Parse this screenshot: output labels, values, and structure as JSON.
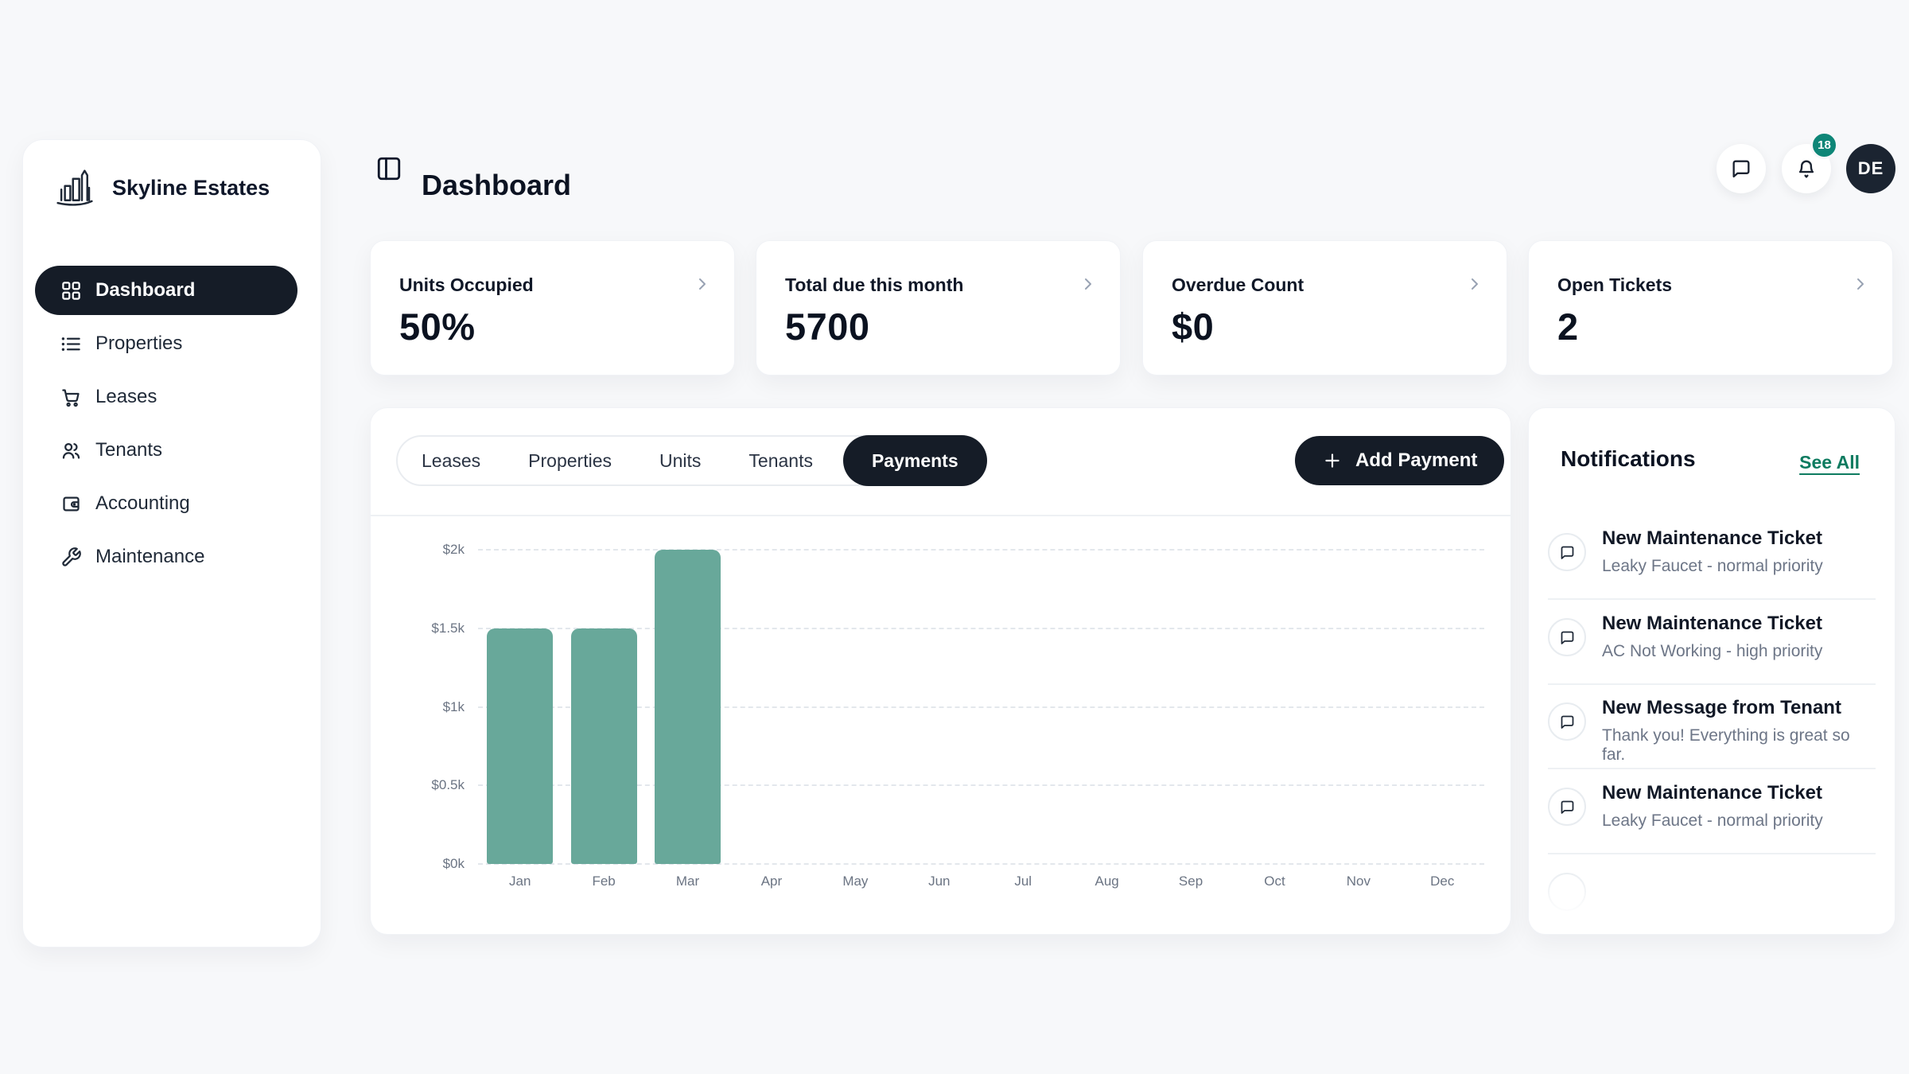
{
  "app": {
    "name": "Skyline Estates"
  },
  "sidebar": {
    "items": [
      {
        "label": "Dashboard",
        "icon": "grid-icon",
        "active": true
      },
      {
        "label": "Properties",
        "icon": "list-icon",
        "active": false
      },
      {
        "label": "Leases",
        "icon": "cart-icon",
        "active": false
      },
      {
        "label": "Tenants",
        "icon": "users-icon",
        "active": false
      },
      {
        "label": "Accounting",
        "icon": "wallet-icon",
        "active": false
      },
      {
        "label": "Maintenance",
        "icon": "wrench-icon",
        "active": false
      }
    ]
  },
  "header": {
    "title": "Dashboard",
    "notification_badge": "18",
    "avatar_initials": "DE",
    "icons": [
      "panel-toggle-icon",
      "chat-bubble-icon",
      "bell-icon"
    ]
  },
  "stat_cards": [
    {
      "label": "Units Occupied",
      "value": "50%"
    },
    {
      "label": "Total due this month",
      "value": "5700"
    },
    {
      "label": "Overdue Count",
      "value": "$0"
    },
    {
      "label": "Open Tickets",
      "value": "2"
    }
  ],
  "tabs": {
    "items": [
      {
        "label": "Leases",
        "active": false
      },
      {
        "label": "Properties",
        "active": false
      },
      {
        "label": "Units",
        "active": false
      },
      {
        "label": "Tenants",
        "active": false
      },
      {
        "label": "Payments",
        "active": true
      }
    ]
  },
  "toolbar": {
    "add_payment_label": "Add Payment",
    "add_icon": "plus-icon"
  },
  "chart_data": {
    "type": "bar",
    "categories": [
      "Jan",
      "Feb",
      "Mar",
      "Apr",
      "May",
      "Jun",
      "Jul",
      "Aug",
      "Sep",
      "Oct",
      "Nov",
      "Dec"
    ],
    "values": [
      1500,
      1500,
      2000,
      0,
      0,
      0,
      0,
      0,
      0,
      0,
      0,
      0
    ],
    "yticks": [
      {
        "label": "$0k",
        "value": 0
      },
      {
        "label": "$0.5k",
        "value": 500
      },
      {
        "label": "$1k",
        "value": 1000
      },
      {
        "label": "$1.5k",
        "value": 1500
      },
      {
        "label": "$2k",
        "value": 2000
      }
    ],
    "ylim": [
      0,
      2000
    ],
    "grid": "horizontal-dashed",
    "legend": "none",
    "bar_color": "#68a89a"
  },
  "notifications": {
    "title": "Notifications",
    "see_all_label": "See All",
    "item_icon": "chat-bubble-icon",
    "items": [
      {
        "title": "New Maintenance Ticket",
        "subtitle": "Leaky Faucet - normal priority"
      },
      {
        "title": "New Maintenance Ticket",
        "subtitle": "AC Not Working - high priority"
      },
      {
        "title": "New Message from Tenant",
        "subtitle": "Thank you! Everything is great so far."
      },
      {
        "title": "New Maintenance Ticket",
        "subtitle": "Leaky Faucet - normal priority"
      }
    ]
  },
  "colors": {
    "background": "#f7f8fa",
    "dark_accent": "#151c27",
    "badge_teal": "#0e8677",
    "link_green": "#0e7b60",
    "bar_teal": "#68a89a",
    "avatar_bg": "#1b2431"
  }
}
